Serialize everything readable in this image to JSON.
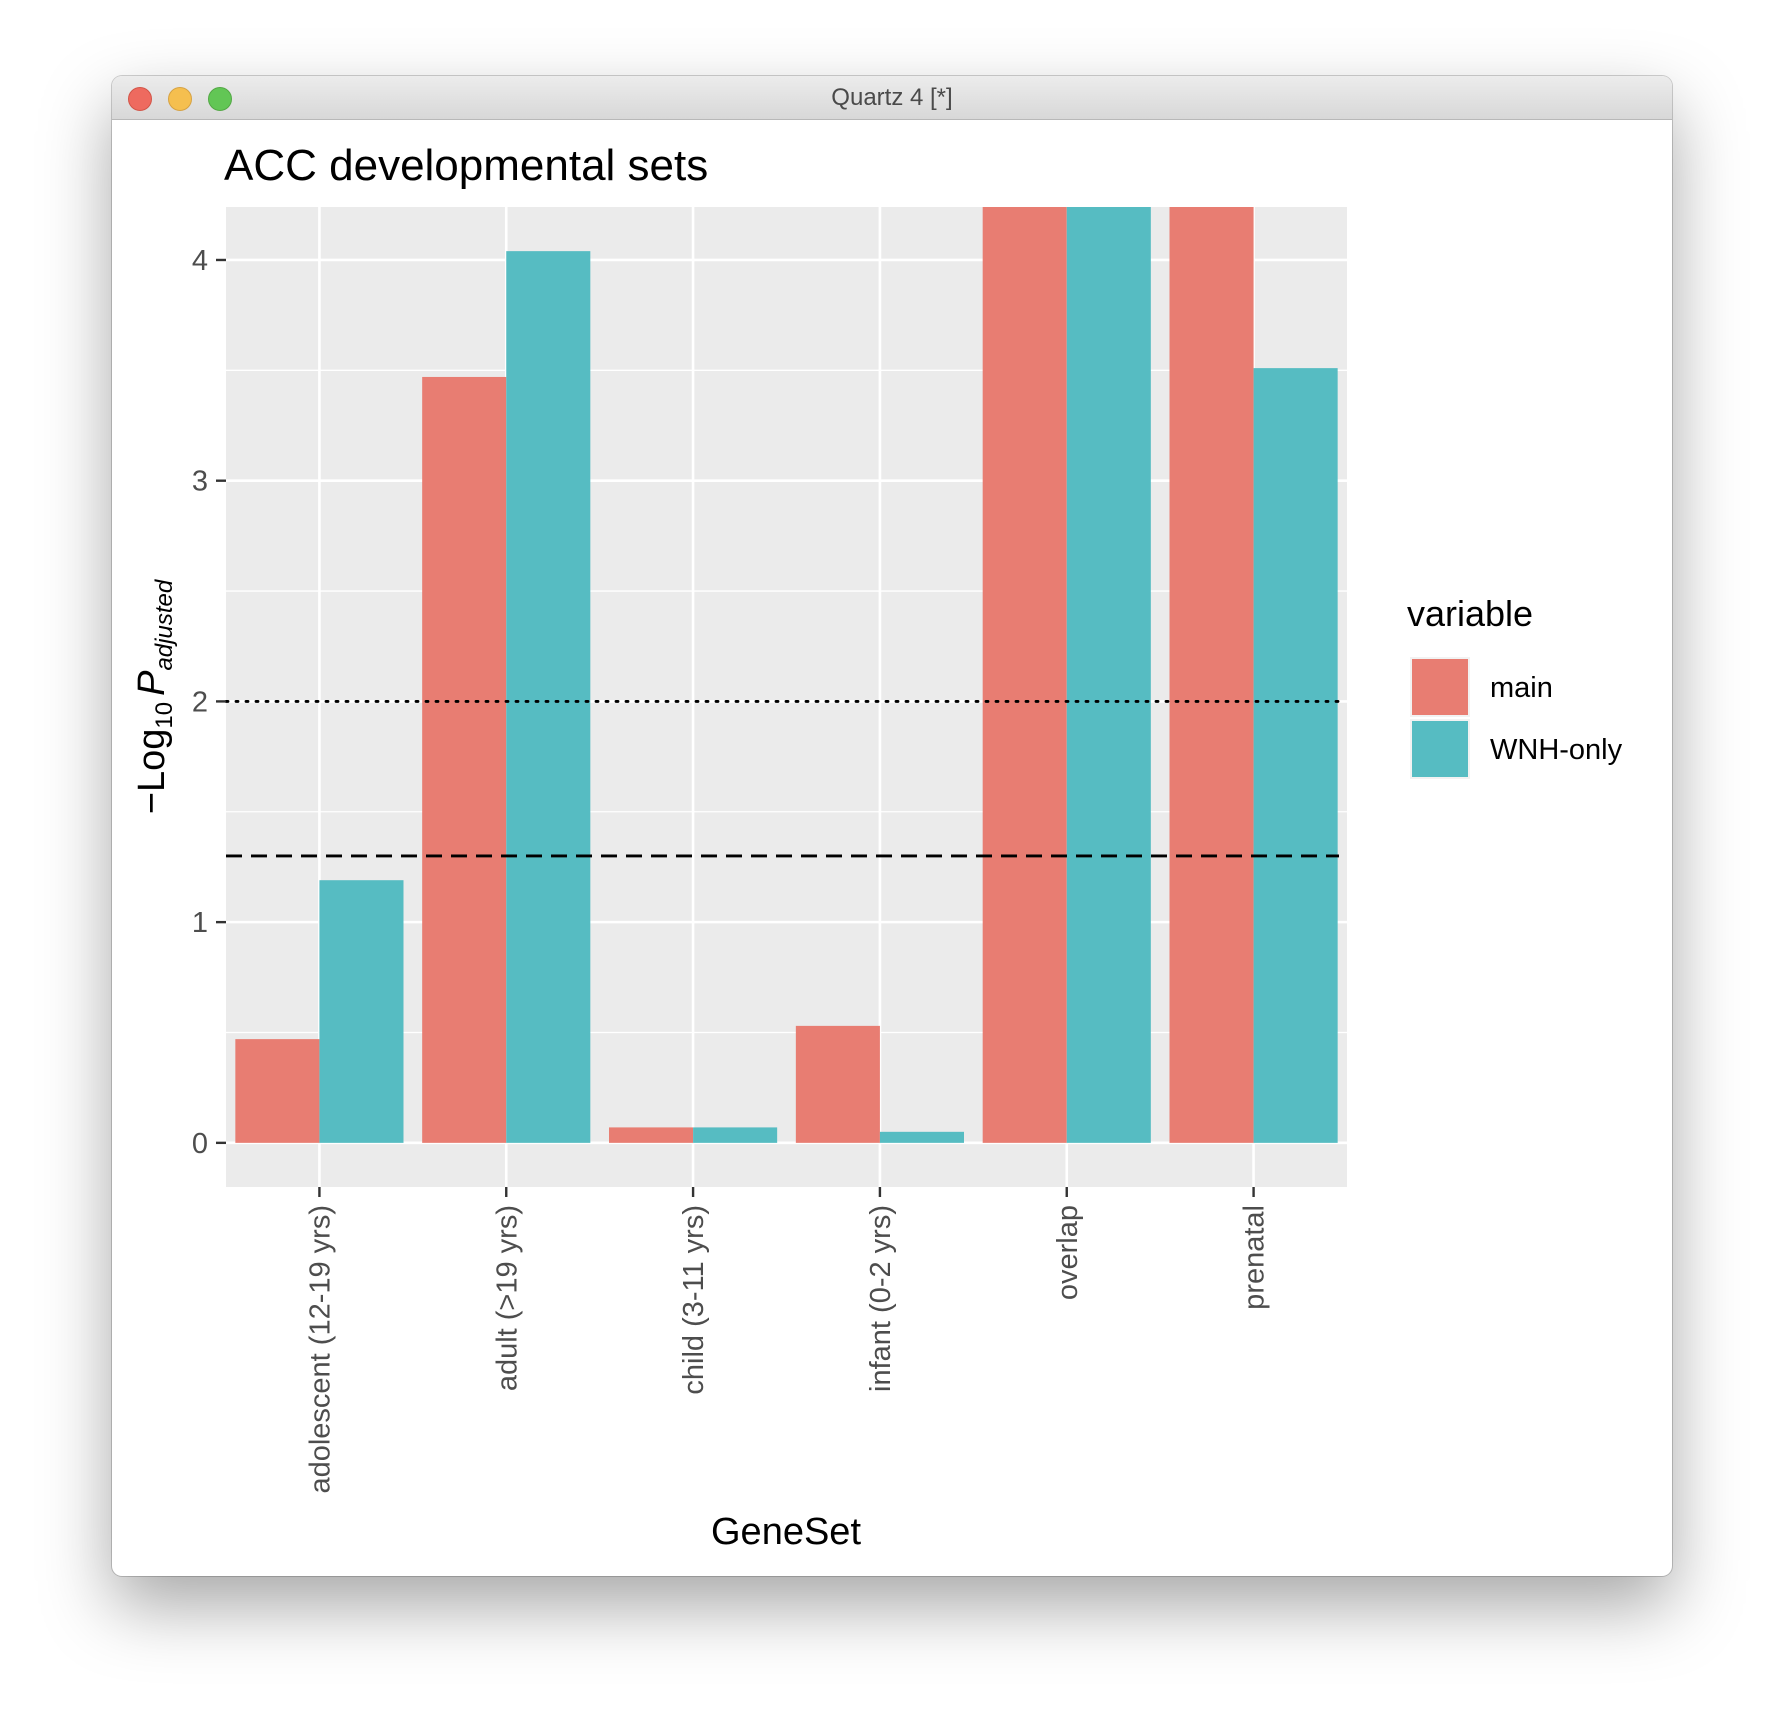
{
  "window": {
    "title": "Quartz 4 [*]",
    "controls": [
      "close",
      "minimize",
      "maximize"
    ]
  },
  "chart_data": {
    "type": "bar",
    "title": "ACC developmental sets",
    "xlabel": "GeneSet",
    "ylabel": "−Log10 P adjusted",
    "ylabel_parts": {
      "prefix": "−Log",
      "subscript": "10",
      "symbol": "P",
      "symbol_subscript": "adjusted"
    },
    "ylim": [
      -0.2,
      4.24
    ],
    "yticks": [
      0,
      1,
      2,
      3,
      4
    ],
    "grid": true,
    "legend": {
      "title": "variable",
      "position": "right"
    },
    "categories": [
      "adolescent (12-19 yrs)",
      "adult (>19 yrs)",
      "child (3-11 yrs)",
      "infant (0-2 yrs)",
      "overlap",
      "prenatal"
    ],
    "series": [
      {
        "name": "main",
        "color": "#e87d72",
        "values": [
          0.47,
          3.47,
          0.07,
          0.53,
          4.24,
          4.24
        ]
      },
      {
        "name": "WNH-only",
        "color": "#56bcc2",
        "values": [
          1.19,
          4.04,
          0.07,
          0.05,
          4.24,
          3.51
        ]
      }
    ],
    "reference_lines": [
      {
        "y": 2.0,
        "style": "dotted",
        "color": "#000000"
      },
      {
        "y": 1.3,
        "style": "dashed",
        "color": "#000000"
      }
    ],
    "colors": {
      "panel": "#ebebeb",
      "grid": "#ffffff"
    }
  }
}
